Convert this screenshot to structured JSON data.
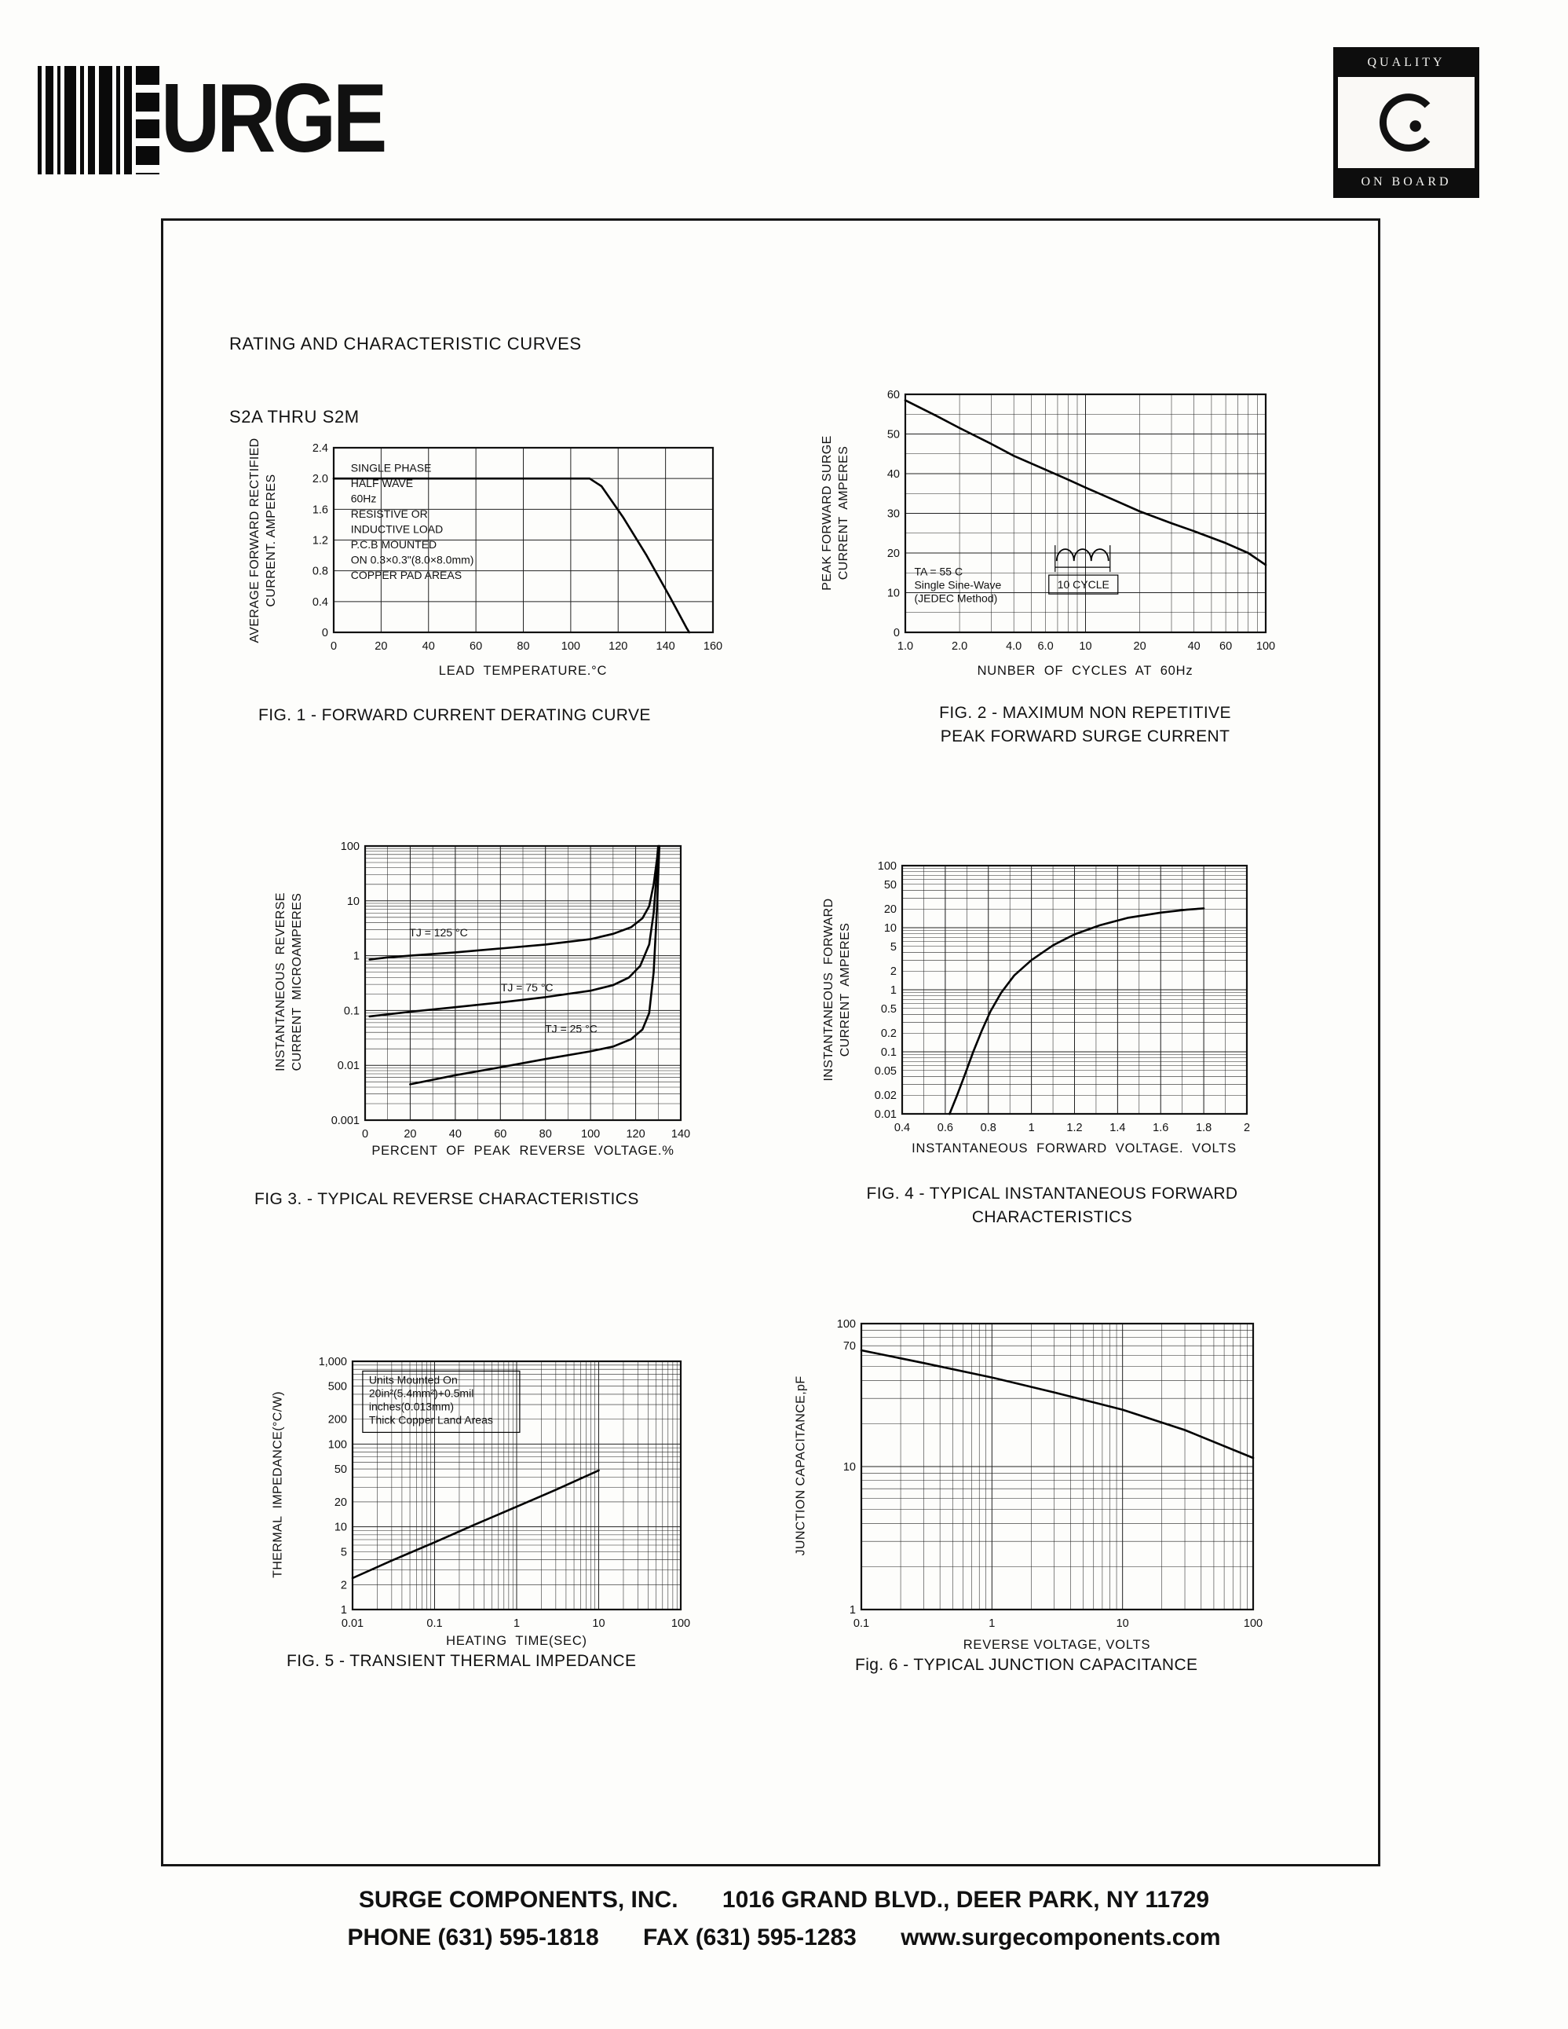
{
  "header": {
    "logo_text": "URGE",
    "seal_top": "QUALITY",
    "seal_bottom": "ON BOARD"
  },
  "title_line1": "RATING AND CHARACTERISTIC CURVES",
  "title_line2": "S2A THRU S2M",
  "footer": {
    "company": "SURGE COMPONENTS, INC.",
    "address": "1016 GRAND BLVD., DEER PARK, NY  11729",
    "phone": "PHONE (631) 595-1818",
    "fax": "FAX  (631) 595-1283",
    "website": "www.surgecomponents.com"
  },
  "chart_data": [
    {
      "id": "fig1",
      "type": "line",
      "title": "FIG. 1 - FORWARD CURRENT DERATING CURVE",
      "xlabel": "LEAD  TEMPERATURE.°C",
      "ylabel": "AVERAGE FORWARD RECTIFIED\nCURRENT. AMPERES",
      "x": {
        "scale": "linear",
        "min": 0,
        "max": 160,
        "grid": 20,
        "ticks": [
          {
            "v": 0,
            "l": "0"
          },
          {
            "v": 20,
            "l": "20"
          },
          {
            "v": 40,
            "l": "40"
          },
          {
            "v": 60,
            "l": "60"
          },
          {
            "v": 80,
            "l": "80"
          },
          {
            "v": 100,
            "l": "100"
          },
          {
            "v": 120,
            "l": "120"
          },
          {
            "v": 140,
            "l": "140"
          },
          {
            "v": 160,
            "l": "160"
          }
        ]
      },
      "y": {
        "scale": "linear",
        "min": 0,
        "max": 2.4,
        "grid": 0.4,
        "ticks": [
          {
            "v": 0,
            "l": "0"
          },
          {
            "v": 0.4,
            "l": "0.4"
          },
          {
            "v": 0.8,
            "l": "0.8"
          },
          {
            "v": 1.2,
            "l": "1.2"
          },
          {
            "v": 1.6,
            "l": "1.6"
          },
          {
            "v": 2.0,
            "l": "2.0"
          },
          {
            "v": 2.4,
            "l": "2.4"
          }
        ]
      },
      "series": [
        {
          "name": "derating",
          "points": [
            [
              0,
              2.0
            ],
            [
              108,
              2.0
            ],
            [
              113,
              1.9
            ],
            [
              122,
              1.5
            ],
            [
              132,
              1.0
            ],
            [
              142,
              0.45
            ],
            [
              149,
              0.05
            ],
            [
              150,
              0
            ]
          ]
        }
      ],
      "annotations": [
        {
          "fx": 0.045,
          "fy": 0.13,
          "lh": 19.5,
          "lines": [
            "SINGLE  PHASE",
            "HALF  WAVE",
            "60Hz",
            "RESISTIVE  OR",
            "INDUCTIVE  LOAD",
            "P.C.B  MOUNTED",
            "ON 0.3×0.3\"(8.0×8.0mm)",
            "COPPER  PAD  AREAS"
          ]
        }
      ]
    },
    {
      "id": "fig2",
      "type": "line",
      "title": "FIG. 2 - MAXIMUM NON REPETITIVE\nPEAK FORWARD SURGE CURRENT",
      "xlabel": "NUNBER  OF  CYCLES  AT  60Hz",
      "ylabel": "PEAK FORWARD SURGE\nCURRENT  AMPERES",
      "x": {
        "scale": "log",
        "min": 1,
        "max": 100,
        "ticks": [
          {
            "v": 1,
            "l": "1.0"
          },
          {
            "v": 2,
            "l": "2.0"
          },
          {
            "v": 4,
            "l": "4.0"
          },
          {
            "v": 6,
            "l": "6.0"
          },
          {
            "v": 10,
            "l": "10"
          },
          {
            "v": 20,
            "l": "20"
          },
          {
            "v": 40,
            "l": "40"
          },
          {
            "v": 60,
            "l": "60"
          },
          {
            "v": 100,
            "l": "100"
          }
        ]
      },
      "y": {
        "scale": "linear",
        "min": 0,
        "max": 60,
        "grid": 10,
        "minor": 5,
        "ticks": [
          {
            "v": 0,
            "l": "0"
          },
          {
            "v": 10,
            "l": "10"
          },
          {
            "v": 20,
            "l": "20"
          },
          {
            "v": 30,
            "l": "30"
          },
          {
            "v": 40,
            "l": "40"
          },
          {
            "v": 50,
            "l": "50"
          },
          {
            "v": 60,
            "l": "60"
          }
        ]
      },
      "series": [
        {
          "name": "surge",
          "points": [
            [
              1,
              58.5
            ],
            [
              1.5,
              54.5
            ],
            [
              2,
              51.5
            ],
            [
              3,
              47.5
            ],
            [
              4,
              44.5
            ],
            [
              6,
              41
            ],
            [
              8,
              38.5
            ],
            [
              10,
              36.5
            ],
            [
              15,
              33
            ],
            [
              20,
              30.5
            ],
            [
              30,
              27.5
            ],
            [
              40,
              25.5
            ],
            [
              60,
              22.5
            ],
            [
              80,
              20
            ],
            [
              100,
              17
            ]
          ]
        }
      ],
      "annotations": [
        {
          "fx": 0.025,
          "fy": 0.76,
          "lh": 17,
          "lines": [
            "TA = 55 C",
            "Single  Sine-Wave",
            "(JEDEC  Method)"
          ]
        },
        {
          "shape": "sine",
          "fx": 0.42,
          "fy": 0.7,
          "label": "10 CYCLE"
        }
      ]
    },
    {
      "id": "fig3",
      "type": "line",
      "title": "FIG 3. - TYPICAL REVERSE CHARACTERISTICS",
      "xlabel": "PERCENT  OF  PEAK  REVERSE  VOLTAGE.%",
      "ylabel": "INSTANTANEOUS  REVERSE\nCURRENT  MICROAMPERES",
      "x": {
        "scale": "linear",
        "min": 0,
        "max": 140,
        "grid": 20,
        "minor": 10,
        "ticks": [
          {
            "v": 0,
            "l": "0"
          },
          {
            "v": 20,
            "l": "20"
          },
          {
            "v": 40,
            "l": "40"
          },
          {
            "v": 60,
            "l": "60"
          },
          {
            "v": 80,
            "l": "80"
          },
          {
            "v": 100,
            "l": "100"
          },
          {
            "v": 120,
            "l": "120"
          },
          {
            "v": 140,
            "l": "140"
          }
        ]
      },
      "y": {
        "scale": "log",
        "min": 0.001,
        "max": 100,
        "ticks": [
          {
            "v": 100,
            "l": "100"
          },
          {
            "v": 10,
            "l": "10"
          },
          {
            "v": 1,
            "l": "1"
          },
          {
            "v": 0.1,
            "l": "0.1"
          },
          {
            "v": 0.01,
            "l": "0.01"
          },
          {
            "v": 0.001,
            "l": "0.001"
          }
        ]
      },
      "series": [
        {
          "name": "TJ=125C",
          "points": [
            [
              2,
              0.85
            ],
            [
              10,
              0.93
            ],
            [
              20,
              1.0
            ],
            [
              40,
              1.15
            ],
            [
              60,
              1.35
            ],
            [
              80,
              1.6
            ],
            [
              100,
              2.0
            ],
            [
              110,
              2.5
            ],
            [
              118,
              3.3
            ],
            [
              123,
              4.8
            ],
            [
              126,
              8
            ],
            [
              128,
              20
            ],
            [
              129.5,
              60
            ],
            [
              130,
              100
            ]
          ]
        },
        {
          "name": "TJ=75C",
          "points": [
            [
              2,
              0.078
            ],
            [
              20,
              0.095
            ],
            [
              40,
              0.115
            ],
            [
              60,
              0.14
            ],
            [
              80,
              0.175
            ],
            [
              100,
              0.23
            ],
            [
              110,
              0.29
            ],
            [
              117,
              0.4
            ],
            [
              122,
              0.65
            ],
            [
              126,
              1.6
            ],
            [
              128,
              6
            ],
            [
              129.5,
              40
            ],
            [
              130.5,
              100
            ]
          ]
        },
        {
          "name": "TJ=25C",
          "points": [
            [
              20,
              0.0045
            ],
            [
              40,
              0.0066
            ],
            [
              60,
              0.0092
            ],
            [
              80,
              0.013
            ],
            [
              100,
              0.018
            ],
            [
              110,
              0.022
            ],
            [
              118,
              0.03
            ],
            [
              123,
              0.045
            ],
            [
              126,
              0.09
            ],
            [
              128,
              0.5
            ],
            [
              129.5,
              8
            ],
            [
              130.5,
              100
            ]
          ]
        }
      ],
      "annotations": [
        {
          "fx": 0.14,
          "fy": 0.33,
          "lines": [
            "TJ = 125 °C"
          ]
        },
        {
          "fx": 0.43,
          "fy": 0.53,
          "lines": [
            "TJ = 75 °C"
          ]
        },
        {
          "fx": 0.57,
          "fy": 0.68,
          "lines": [
            "TJ = 25 °C"
          ]
        }
      ]
    },
    {
      "id": "fig4",
      "type": "line",
      "title": "FIG. 4 - TYPICAL INSTANTANEOUS FORWARD\nCHARACTERISTICS",
      "xlabel": "INSTANTANEOUS  FORWARD  VOLTAGE.  VOLTS",
      "ylabel": "INSTANTANEOUS  FORWARD\nCURRENT  AMPERES",
      "x": {
        "scale": "linear",
        "min": 0.4,
        "max": 2,
        "grid": 0.2,
        "minor": 0.1,
        "ticks": [
          {
            "v": 0.4,
            "l": "0.4"
          },
          {
            "v": 0.6,
            "l": "0.6"
          },
          {
            "v": 0.8,
            "l": "0.8"
          },
          {
            "v": 1,
            "l": "1"
          },
          {
            "v": 1.2,
            "l": "1.2"
          },
          {
            "v": 1.4,
            "l": "1.4"
          },
          {
            "v": 1.6,
            "l": "1.6"
          },
          {
            "v": 1.8,
            "l": "1.8"
          },
          {
            "v": 2,
            "l": "2"
          }
        ]
      },
      "y": {
        "scale": "log",
        "min": 0.01,
        "max": 100,
        "ticks": [
          {
            "v": 100,
            "l": "100"
          },
          {
            "v": 50,
            "l": "50"
          },
          {
            "v": 20,
            "l": "20"
          },
          {
            "v": 10,
            "l": "10"
          },
          {
            "v": 5,
            "l": "5"
          },
          {
            "v": 2,
            "l": "2"
          },
          {
            "v": 1,
            "l": "1"
          },
          {
            "v": 0.5,
            "l": "0.5"
          },
          {
            "v": 0.2,
            "l": "0.2"
          },
          {
            "v": 0.1,
            "l": "0.1"
          },
          {
            "v": 0.05,
            "l": "0.05"
          },
          {
            "v": 0.02,
            "l": "0.02"
          },
          {
            "v": 0.01,
            "l": "0.01"
          }
        ]
      },
      "series": [
        {
          "name": "vf",
          "points": [
            [
              0.62,
              0.01
            ],
            [
              0.655,
              0.02
            ],
            [
              0.69,
              0.042
            ],
            [
              0.73,
              0.1
            ],
            [
              0.77,
              0.22
            ],
            [
              0.81,
              0.45
            ],
            [
              0.86,
              0.9
            ],
            [
              0.92,
              1.7
            ],
            [
              1.0,
              3.0
            ],
            [
              1.1,
              5.2
            ],
            [
              1.2,
              7.8
            ],
            [
              1.32,
              11
            ],
            [
              1.45,
              14.5
            ],
            [
              1.6,
              17.5
            ],
            [
              1.72,
              19.5
            ],
            [
              1.8,
              20.5
            ]
          ]
        }
      ],
      "annotations": []
    },
    {
      "id": "fig5",
      "type": "line",
      "title": "FIG. 5 - TRANSIENT THERMAL IMPEDANCE",
      "xlabel": "HEATING  TIME(SEC)",
      "ylabel": "THERMAL  IMPEDANCE(°C/W)",
      "x": {
        "scale": "log",
        "min": 0.01,
        "max": 100,
        "ticks": [
          {
            "v": 0.01,
            "l": "0.01"
          },
          {
            "v": 0.1,
            "l": "0.1"
          },
          {
            "v": 1,
            "l": "1"
          },
          {
            "v": 10,
            "l": "10"
          },
          {
            "v": 100,
            "l": "100"
          }
        ]
      },
      "y": {
        "scale": "log",
        "min": 1,
        "max": 1000,
        "ticks": [
          {
            "v": 1000,
            "l": "1,000"
          },
          {
            "v": 500,
            "l": "500"
          },
          {
            "v": 200,
            "l": "200"
          },
          {
            "v": 100,
            "l": "100"
          },
          {
            "v": 50,
            "l": "50"
          },
          {
            "v": 20,
            "l": "20"
          },
          {
            "v": 10,
            "l": "10"
          },
          {
            "v": 5,
            "l": "5"
          },
          {
            "v": 2,
            "l": "2"
          },
          {
            "v": 1,
            "l": "1"
          }
        ]
      },
      "series": [
        {
          "name": "thermal",
          "points": [
            [
              0.01,
              2.4
            ],
            [
              0.03,
              3.9
            ],
            [
              0.1,
              6.5
            ],
            [
              0.3,
              10.5
            ],
            [
              1,
              17.5
            ],
            [
              3,
              28
            ],
            [
              10,
              48
            ]
          ]
        }
      ],
      "annotations": [
        {
          "fx": 0.05,
          "fy": 0.09,
          "lh": 17,
          "box": true,
          "bw": 200,
          "lines": [
            "Units  Mounted  On",
            "20in²(5.4mm²)+0.5mil",
            "inches(0.013mm)",
            "Thick  Copper  Land  Areas"
          ]
        }
      ]
    },
    {
      "id": "fig6",
      "type": "line",
      "title": "Fig. 6 - TYPICAL JUNCTION CAPACITANCE",
      "xlabel": "REVERSE VOLTAGE, VOLTS",
      "ylabel": "JUNCTION CAPACITANCE,pF",
      "x": {
        "scale": "log",
        "min": 0.1,
        "max": 100,
        "ticks": [
          {
            "v": 0.1,
            "l": "0.1"
          },
          {
            "v": 1,
            "l": "1"
          },
          {
            "v": 10,
            "l": "10"
          },
          {
            "v": 100,
            "l": "100"
          }
        ]
      },
      "y": {
        "scale": "log",
        "min": 1,
        "max": 100,
        "ticks": [
          {
            "v": 100,
            "l": "100"
          },
          {
            "v": 70,
            "l": "70"
          },
          {
            "v": 10,
            "l": "10"
          },
          {
            "v": 1,
            "l": "1"
          }
        ]
      },
      "series": [
        {
          "name": "cj",
          "points": [
            [
              0.1,
              65
            ],
            [
              0.3,
              53
            ],
            [
              1,
              42
            ],
            [
              3,
              33
            ],
            [
              10,
              25
            ],
            [
              30,
              18
            ],
            [
              100,
              11.5
            ]
          ]
        }
      ],
      "annotations": []
    }
  ]
}
